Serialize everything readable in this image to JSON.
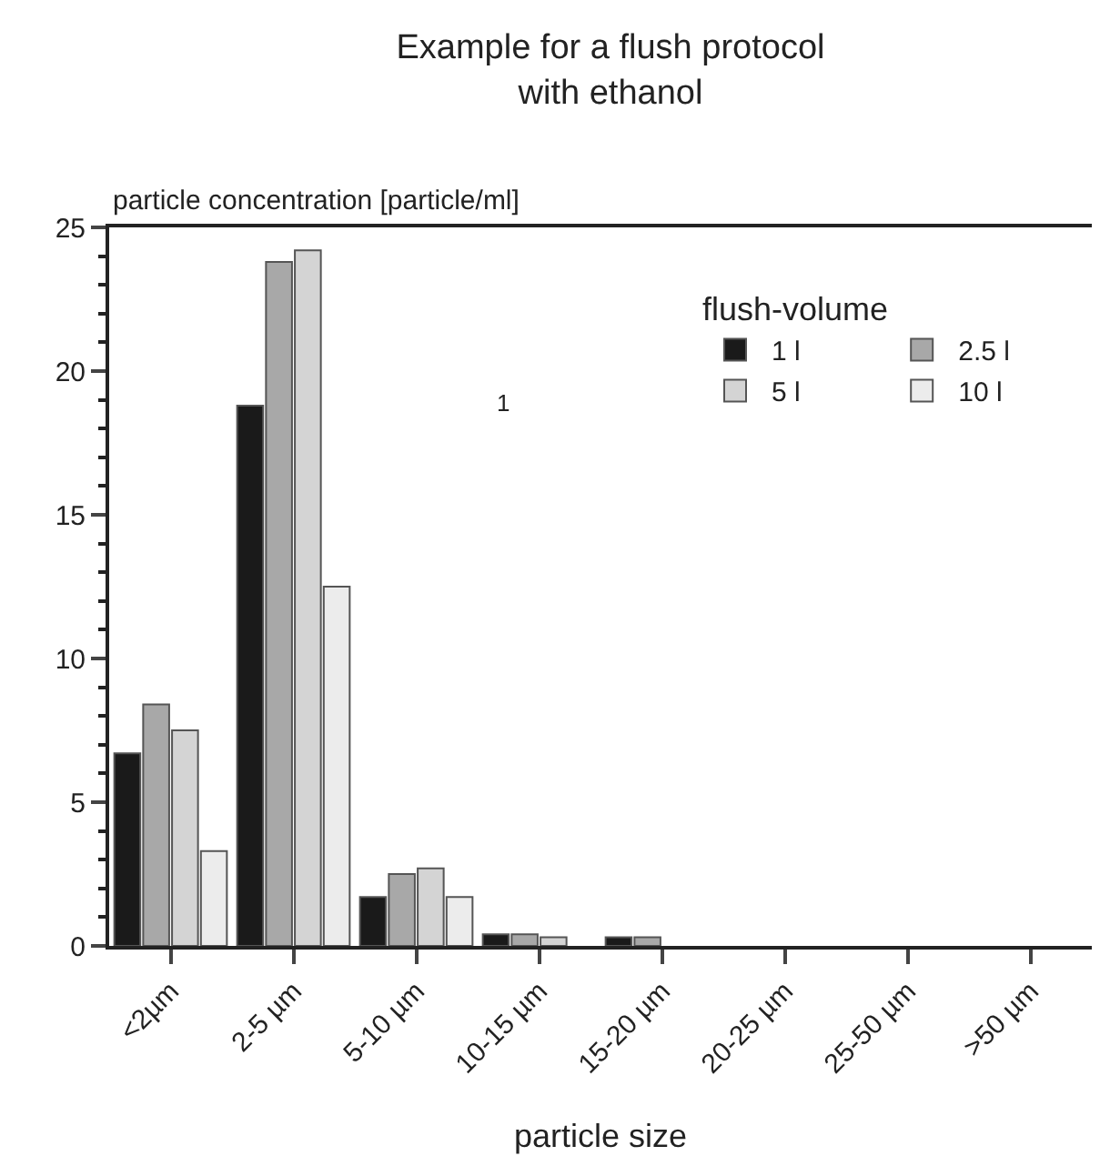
{
  "chart_data": {
    "type": "bar",
    "title": "Example for a flush protocol\nwith ethanol",
    "xlabel": "particle size",
    "ylabel": "particle concentration [particle/ml]",
    "legend_title": "flush-volume",
    "categories": [
      "<2µm",
      "2-5 µm",
      "5-10 µm",
      "10-15 µm",
      "15-20 µm",
      "20-25 µm",
      "25-50 µm",
      ">50 µm"
    ],
    "series": [
      {
        "name": "1 l",
        "color": "#1a1a1a",
        "values": [
          6.7,
          18.8,
          1.7,
          0.4,
          0.3,
          null,
          null,
          null
        ]
      },
      {
        "name": "2.5 l",
        "color": "#a8a8a8",
        "values": [
          8.4,
          23.8,
          2.5,
          0.4,
          0.3,
          null,
          null,
          null
        ]
      },
      {
        "name": "5 l",
        "color": "#d4d4d4",
        "values": [
          7.5,
          24.2,
          2.7,
          0.3,
          null,
          null,
          null,
          null
        ]
      },
      {
        "name": "10 l",
        "color": "#ececec",
        "values": [
          3.3,
          12.5,
          1.7,
          null,
          null,
          null,
          null,
          null
        ]
      }
    ],
    "ylim": [
      0,
      25
    ],
    "yticks": [
      0,
      5,
      10,
      15,
      20,
      25
    ],
    "legend": "top right",
    "annotations": [
      "1"
    ]
  }
}
